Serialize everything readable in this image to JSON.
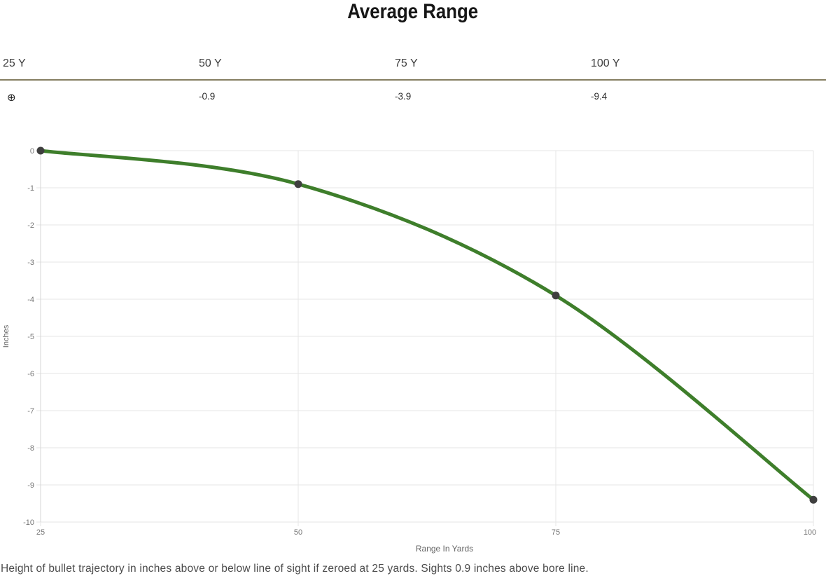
{
  "page": {
    "title": "Average Range",
    "footer": "Height of bullet trajectory in inches above or below line of sight if zeroed at 25 yards. Sights 0.9 inches above bore line."
  },
  "summary": {
    "columns": [
      {
        "label": "25 Y",
        "value": "⊕"
      },
      {
        "label": "50 Y",
        "value": "-0.9"
      },
      {
        "label": "75 Y",
        "value": "-3.9"
      },
      {
        "label": "100 Y",
        "value": "-9.4"
      }
    ]
  },
  "chart_data": {
    "type": "line",
    "x": [
      25,
      50,
      75,
      100
    ],
    "values": [
      0,
      -0.9,
      -3.9,
      -9.4
    ],
    "title": "Average Range",
    "xlabel": "Range In Yards",
    "ylabel": "Inches",
    "xlim": [
      25,
      100
    ],
    "ylim": [
      -10,
      0
    ],
    "xticks": [
      25,
      50,
      75,
      100
    ],
    "yticks": [
      0,
      -1,
      -2,
      -3,
      -4,
      -5,
      -6,
      -7,
      -8,
      -9,
      -10
    ],
    "grid": true,
    "legend": "none",
    "line_color": "#3e7e2b",
    "point_color": "#3f3f3f",
    "grid_color": "#e5e5e5",
    "axis_color": "#d6d6d6",
    "tick_label_color": "#777777",
    "axis_title_color": "#666666"
  },
  "colors": {
    "summary_divider": "#857e61"
  }
}
